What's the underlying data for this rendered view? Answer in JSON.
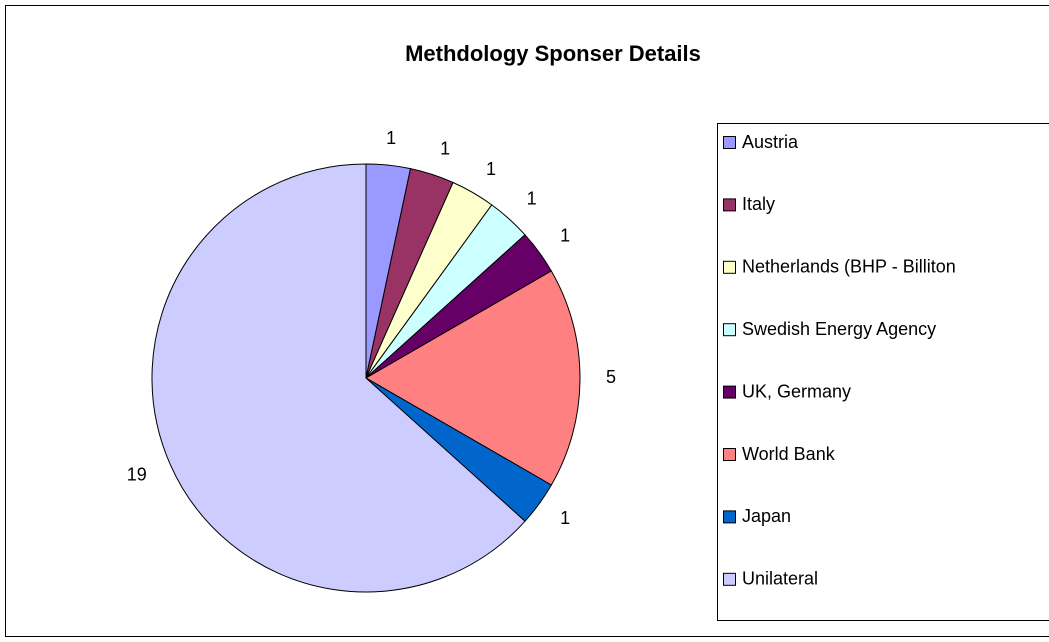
{
  "chart_data": {
    "type": "pie",
    "title": "Methdology Sponser Details",
    "categories": [
      "Austria",
      "Italy",
      "Netherlands (BHP - Billiton",
      "Swedish Energy Agency",
      "UK, Germany",
      "World Bank",
      "Japan",
      "Unilateral"
    ],
    "values": [
      1,
      1,
      1,
      1,
      1,
      5,
      1,
      19
    ],
    "colors": [
      "#9999FF",
      "#993366",
      "#FFFFCC",
      "#CCFFFF",
      "#660066",
      "#FF8080",
      "#0066CC",
      "#CCCCFF"
    ],
    "legend": "right"
  }
}
